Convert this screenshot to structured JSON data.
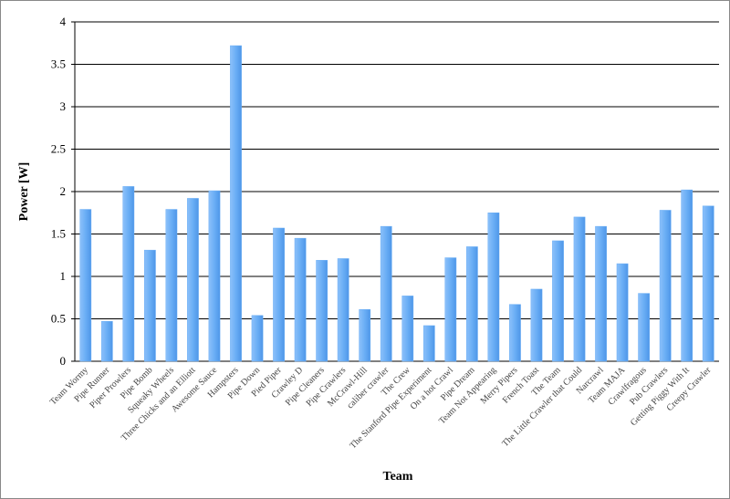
{
  "chart_data": {
    "type": "bar",
    "xlabel": "Team",
    "ylabel": "Power [W]",
    "categories": [
      "Team Wormy",
      "Pipe Runner",
      "Piper Prowlers",
      "Pipe Bomb",
      "Squeaky Wheels",
      "Three Chicks and an Elliott",
      "Awesome Sauce",
      "Hampsters",
      "Pipe Down",
      "Pied Piper",
      "Crawley D",
      "Pipe Cleaners",
      "Pipe Crawlers",
      "McCrawl-Hill",
      "caliber crawler",
      "The Crew",
      "The Stanford Pipe Experiment",
      "On a hot Crawl",
      "Pipe Dream",
      "Team Not Appearing",
      "Merry Pipers",
      "French Toast",
      "The Team",
      "The Little Crawler that Could",
      "Narcrawl",
      "Team MAJA",
      "Crawlfragous",
      "Pub Crawlers",
      "Getting Piggy With It",
      "Creepy Crawler"
    ],
    "values": [
      1.79,
      0.47,
      2.06,
      1.31,
      1.79,
      1.92,
      2.01,
      3.72,
      0.54,
      1.57,
      1.45,
      1.19,
      1.21,
      0.61,
      1.59,
      0.77,
      0.42,
      1.22,
      1.35,
      1.75,
      0.67,
      0.85,
      1.42,
      1.7,
      1.59,
      1.15,
      0.8,
      1.78,
      2.02,
      1.83
    ],
    "color": "#6aaef5",
    "ylim": [
      0,
      4
    ],
    "yticks": [
      0,
      0.5,
      1,
      1.5,
      2,
      2.5,
      3,
      3.5,
      4
    ],
    "grid": true
  }
}
